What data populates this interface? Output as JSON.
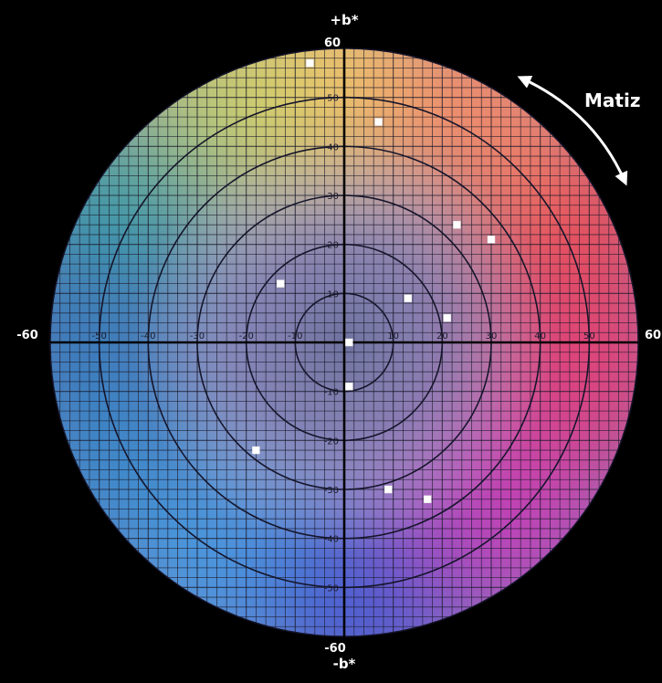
{
  "chart_data": {
    "type": "scatter",
    "title": "",
    "xlabel": "",
    "ylabel_top": "+b*",
    "ylabel_bottom": "-b*",
    "xlim": [
      -60,
      60
    ],
    "ylim": [
      -60,
      60
    ],
    "grid": true,
    "grid_step": 2,
    "circle_radii": [
      10,
      20,
      30,
      40,
      50
    ],
    "hue_annotation": "Matiz",
    "x_tick_labels": [
      "-50",
      "-40",
      "-30",
      "-20",
      "-10",
      "10",
      "20",
      "30",
      "40",
      "50"
    ],
    "y_tick_labels": [
      "50",
      "40",
      "30",
      "20",
      "10",
      "-10",
      "-20",
      "-30",
      "-40",
      "-50"
    ],
    "axis_end_labels": {
      "left": "-60",
      "right": "60",
      "top": "60",
      "bottom": "-60"
    },
    "points": [
      {
        "x": -7,
        "y": 57
      },
      {
        "x": 7,
        "y": 45
      },
      {
        "x": 23,
        "y": 24
      },
      {
        "x": 30,
        "y": 21
      },
      {
        "x": -13,
        "y": 12
      },
      {
        "x": 13,
        "y": 9
      },
      {
        "x": 21,
        "y": 5
      },
      {
        "x": 1,
        "y": 0
      },
      {
        "x": 1,
        "y": -9
      },
      {
        "x": -18,
        "y": -22
      },
      {
        "x": 9,
        "y": -30
      },
      {
        "x": 17,
        "y": -32
      }
    ],
    "colors": {
      "background": "#000000",
      "grid": "#1a1a2a",
      "point": "#ffffff",
      "label": "#ffffff"
    }
  }
}
